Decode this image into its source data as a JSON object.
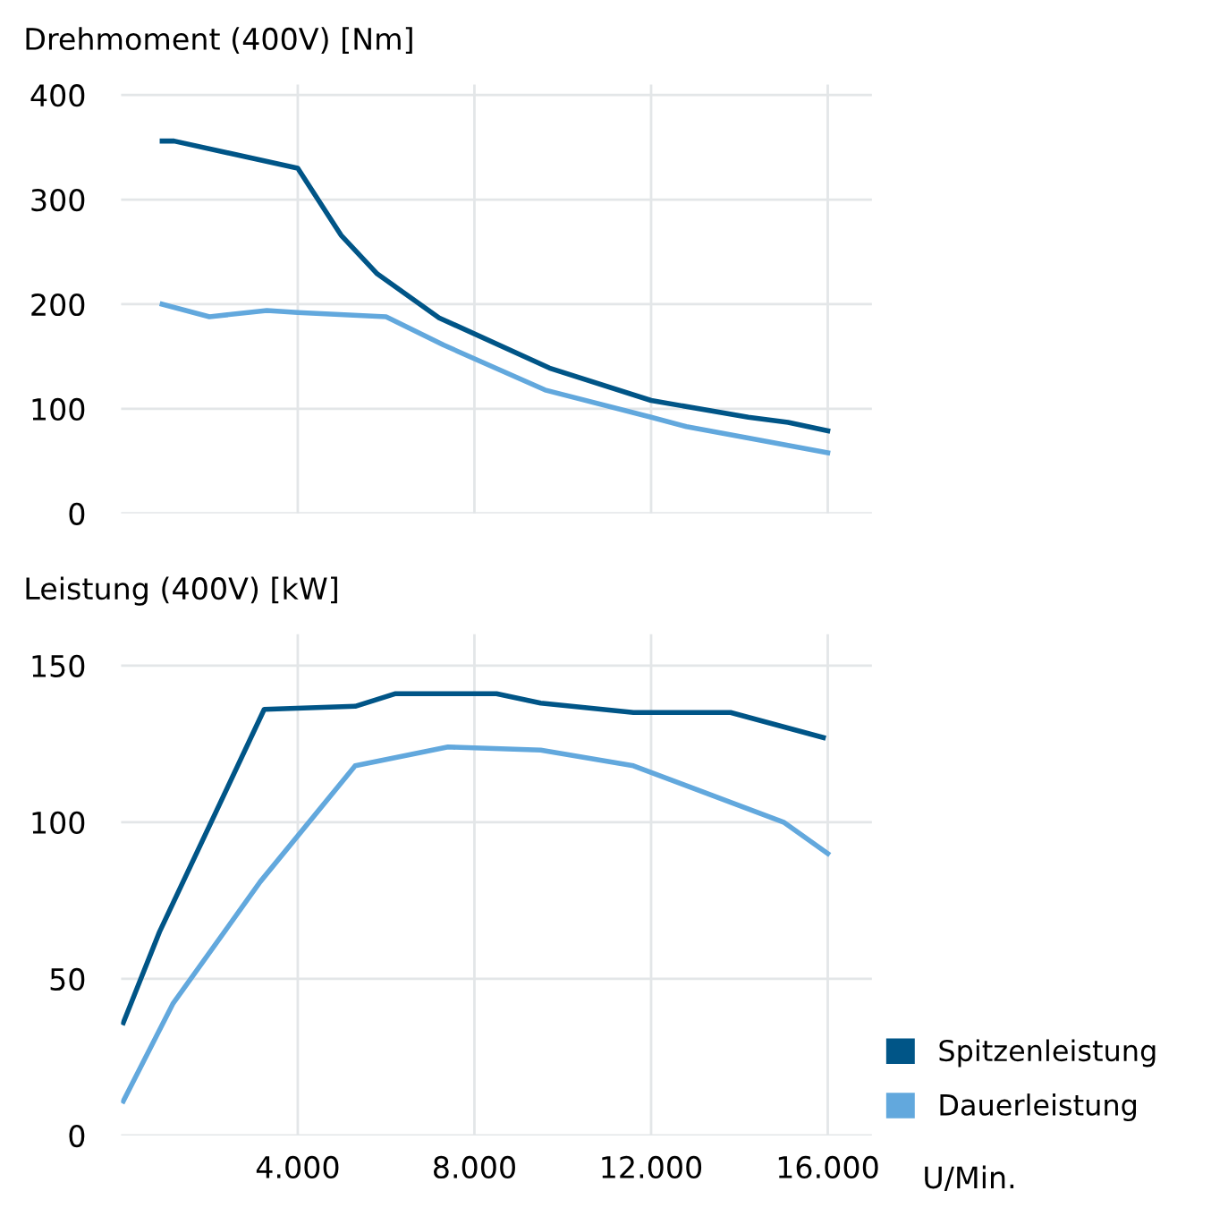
{
  "chart_data": [
    {
      "type": "line",
      "title": "Drehmoment (400V) [Nm]",
      "xlim": [
        0,
        17000
      ],
      "xticks": [
        4000,
        8000,
        12000,
        16000
      ],
      "ylim": [
        0,
        410
      ],
      "yticks": [
        0,
        100,
        200,
        300,
        400
      ],
      "grid": true,
      "tick_labels": "y",
      "line_style": "solid",
      "marker": "none",
      "series": [
        {
          "color": "#005587",
          "x": [
            930,
            1200,
            4000,
            4980,
            5800,
            7200,
            9700,
            12000,
            14200,
            15100,
            16000
          ],
          "values": [
            356,
            356,
            330,
            266,
            229,
            187,
            139,
            108,
            92,
            87,
            79
          ]
        },
        {
          "color": "#62a8dd",
          "x": [
            930,
            2000,
            3300,
            4000,
            6000,
            7300,
            9600,
            12000,
            12800,
            14200,
            16000
          ],
          "values": [
            200,
            188,
            194,
            192,
            188,
            161,
            118,
            92,
            83,
            72,
            58
          ]
        }
      ]
    },
    {
      "type": "line",
      "title": "Leistung (400V) [kW]",
      "xlabel": "U/Min.",
      "xlim": [
        0,
        17000
      ],
      "xticks": [
        {
          "value": 4000,
          "label": "4.000"
        },
        {
          "value": 8000,
          "label": "8.000"
        },
        {
          "value": 12000,
          "label": "12.000"
        },
        {
          "value": 16000,
          "label": "16.000"
        }
      ],
      "ylim": [
        0,
        160
      ],
      "yticks": [
        0,
        50,
        100,
        150
      ],
      "grid": true,
      "legend": "bottom right",
      "line_style": "solid",
      "marker": "none",
      "series": [
        {
          "name": "Spitzenleistung",
          "color": "#005587",
          "x": [
            50,
            870,
            3240,
            5300,
            6200,
            8500,
            9500,
            11600,
            13800,
            15900
          ],
          "values": [
            36,
            65,
            136,
            137,
            141,
            141,
            138,
            135,
            135,
            127
          ]
        },
        {
          "name": "Dauerleistung",
          "color": "#62a8dd",
          "x": [
            50,
            1170,
            3150,
            5300,
            7400,
            9500,
            11600,
            15000,
            16000
          ],
          "values": [
            11,
            42,
            81,
            118,
            124,
            123,
            118,
            100,
            90
          ]
        }
      ]
    }
  ]
}
